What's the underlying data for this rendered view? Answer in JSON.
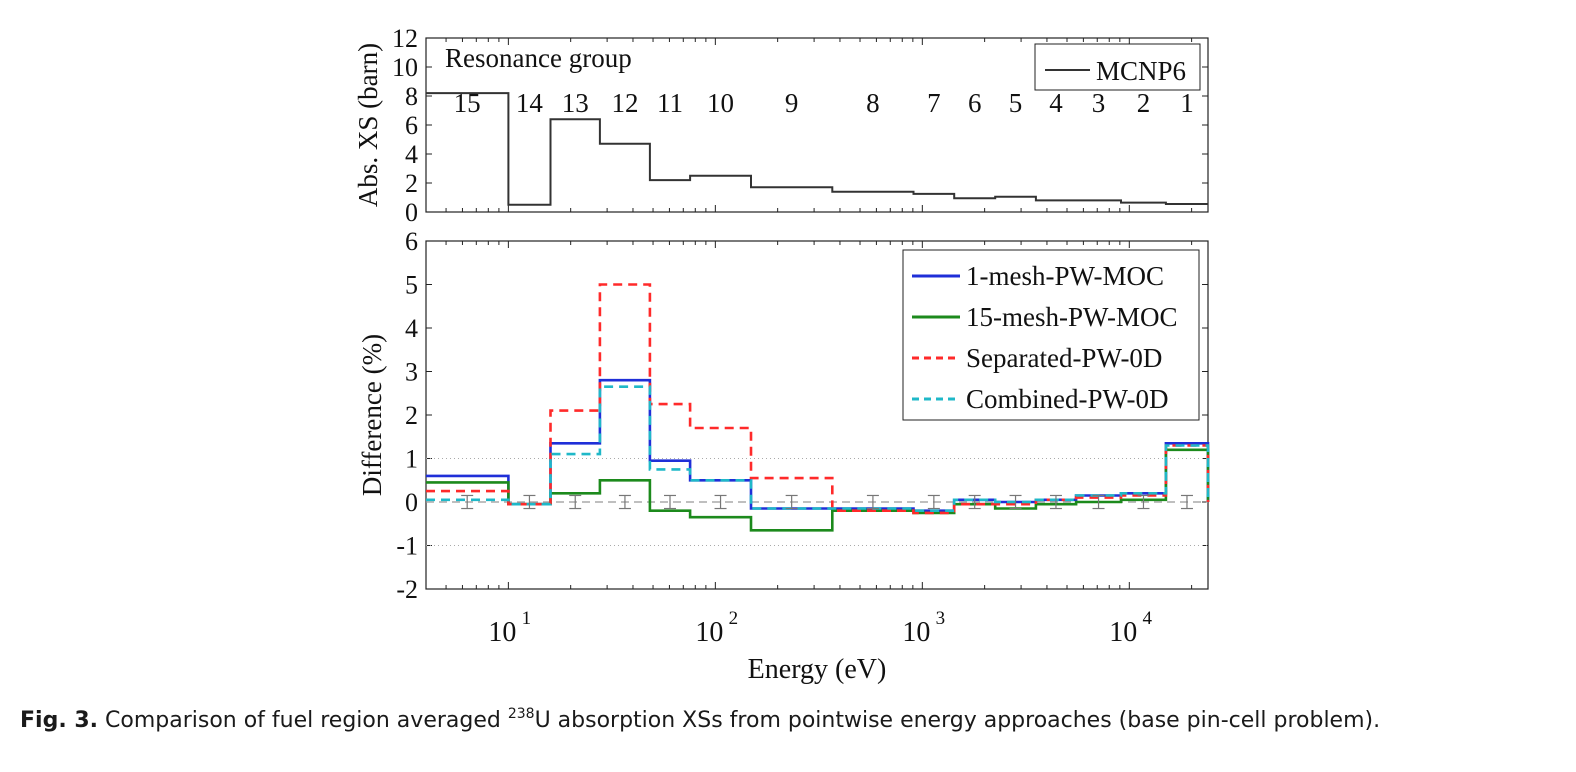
{
  "caption": {
    "label": "Fig. 3.",
    "text_before": "Comparison of fuel region averaged",
    "sup": "238",
    "text_after": "U absorption XSs from pointwise energy approaches (base pin-cell problem)."
  },
  "colors": {
    "mcnp": "#333333",
    "mesh1": "#1f2fd8",
    "mesh15": "#1c8a1c",
    "separated": "#ff2a2a",
    "combined": "#1fb8c8",
    "errorbar": "#777777"
  },
  "chart_data": [
    {
      "type": "line",
      "step": true,
      "x_scale": "log",
      "xlim": [
        4,
        24000
      ],
      "ylim": [
        0,
        12
      ],
      "yticks": [
        0,
        2,
        4,
        6,
        8,
        10,
        12
      ],
      "ylabel": "Abs. XS (barn)",
      "annotation": "Resonance group",
      "group_edges": [
        4,
        10,
        15.98,
        27.7,
        48.3,
        75.5,
        148.7,
        367.3,
        906.9,
        1425,
        2250,
        3536,
        5531,
        9119,
        15030,
        24000
      ],
      "group_labels": [
        "15",
        "14",
        "13",
        "12",
        "11",
        "10",
        "9",
        "8",
        "7",
        "6",
        "5",
        "4",
        "3",
        "2",
        "1"
      ],
      "series": [
        {
          "name": "MCNP6",
          "color_key": "mcnp",
          "dash": "none",
          "values": [
            8.2,
            0.5,
            6.4,
            4.7,
            2.2,
            2.5,
            1.7,
            1.4,
            1.25,
            0.95,
            1.05,
            0.8,
            0.8,
            0.65,
            0.55
          ]
        }
      ]
    },
    {
      "type": "line",
      "step": true,
      "x_scale": "log",
      "xlim": [
        4,
        24000
      ],
      "ylim": [
        -2,
        6
      ],
      "yticks": [
        -2,
        -1,
        0,
        1,
        2,
        3,
        4,
        5,
        6
      ],
      "xticks": [
        10,
        100,
        1000,
        10000
      ],
      "xtick_labels": [
        {
          "base": "10",
          "exp": "1"
        },
        {
          "base": "10",
          "exp": "2"
        },
        {
          "base": "10",
          "exp": "3"
        },
        {
          "base": "10",
          "exp": "4"
        }
      ],
      "xlabel": "Energy (eV)",
      "ylabel": "Difference (%)",
      "grid": "dotted at -1 and 1",
      "legend": "top-right",
      "series": [
        {
          "name": "1-mesh-PW-MOC",
          "color_key": "mesh1",
          "dash": "none",
          "values": [
            0.6,
            -0.05,
            1.35,
            2.8,
            0.95,
            0.5,
            -0.15,
            -0.15,
            -0.2,
            0.05,
            0.0,
            0.05,
            0.15,
            0.2,
            1.35
          ]
        },
        {
          "name": "15-mesh-PW-MOC",
          "color_key": "mesh15",
          "dash": "none",
          "values": [
            0.45,
            -0.05,
            0.2,
            0.5,
            -0.2,
            -0.35,
            -0.65,
            -0.2,
            -0.25,
            -0.05,
            -0.15,
            -0.05,
            0.0,
            0.05,
            1.2
          ]
        },
        {
          "name": "Separated-PW-0D",
          "color_key": "separated",
          "dash": "dashed",
          "values": [
            0.25,
            -0.05,
            2.1,
            5.0,
            2.25,
            1.7,
            0.55,
            -0.2,
            -0.25,
            -0.05,
            -0.05,
            0.05,
            0.1,
            0.15,
            1.3
          ]
        },
        {
          "name": "Combined-PW-0D",
          "color_key": "combined",
          "dash": "dashed",
          "values": [
            0.05,
            -0.05,
            1.1,
            2.65,
            0.75,
            0.5,
            -0.15,
            -0.15,
            -0.2,
            0.05,
            0.0,
            0.05,
            0.15,
            0.2,
            1.3
          ]
        }
      ],
      "error_bar_halfwidth": 0.15
    }
  ]
}
